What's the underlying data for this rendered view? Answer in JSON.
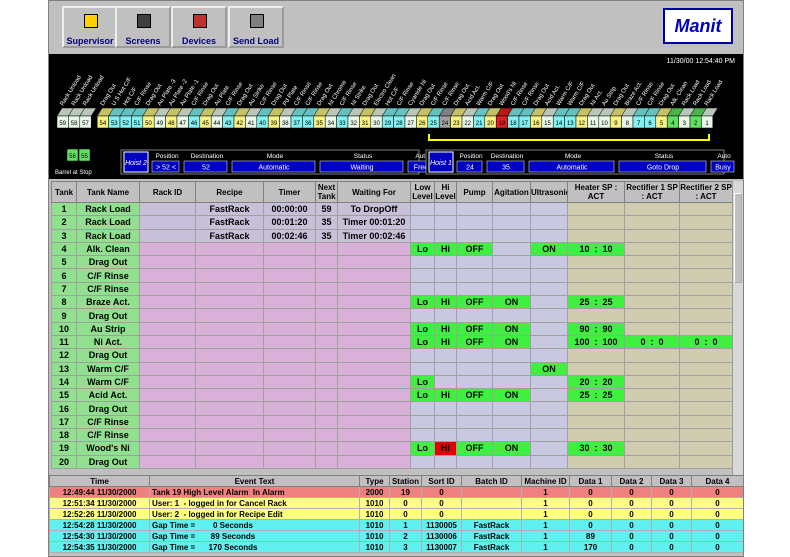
{
  "toolbar": {
    "buttons": [
      "Supervisor",
      "Screens",
      "Devices",
      "Send Load"
    ],
    "logo": "Manit"
  },
  "diagram": {
    "datetime": "11/30/00 12:54:40 PM",
    "barrel_note": "Barrel at Stop",
    "tanks": [
      {
        "no": 59,
        "label": "Rack Unload",
        "color": "#e8f8e8"
      },
      {
        "no": 58,
        "label": "Rack Unload",
        "color": "#e8f8e8"
      },
      {
        "no": 57,
        "label": "Rack Unload",
        "color": "#e8f8e8"
      },
      {
        "no": 54,
        "label": "Drag Out",
        "color": "#f8f080"
      },
      {
        "no": 53,
        "label": "U S Hot C/F",
        "color": "#80f0f0"
      },
      {
        "no": 52,
        "label": "Hot C/F",
        "color": "#80f0f0"
      },
      {
        "no": 51,
        "label": "C/F Rinse",
        "color": "#80f0f0"
      },
      {
        "no": 50,
        "label": "Drag Out",
        "color": "#f8f080"
      },
      {
        "no": 49,
        "label": "Au Plate -3",
        "color": "#e8f8e8"
      },
      {
        "no": 48,
        "label": "Au Plate -2",
        "color": "#f8f080"
      },
      {
        "no": 47,
        "label": "Au Plate -1",
        "color": "#e8f8e8"
      },
      {
        "no": 46,
        "label": "C/F Rinse",
        "color": "#80f0f0"
      },
      {
        "no": 45,
        "label": "Drag Out",
        "color": "#f8f080"
      },
      {
        "no": 44,
        "label": "Au Plate",
        "color": "#e8f8e8"
      },
      {
        "no": 43,
        "label": "C/F Rinse",
        "color": "#80f0f0"
      },
      {
        "no": 42,
        "label": "Drag Out",
        "color": "#f8f080"
      },
      {
        "no": 41,
        "label": "Au Strike",
        "color": "#e8f8e8"
      },
      {
        "no": 40,
        "label": "C/F Rinse",
        "color": "#80f0f0"
      },
      {
        "no": 39,
        "label": "Drag Out",
        "color": "#f8f080"
      },
      {
        "no": 38,
        "label": "Pd Plate",
        "color": "#e8f8e8"
      },
      {
        "no": 37,
        "label": "C/F Rinse",
        "color": "#80f0f0"
      },
      {
        "no": 36,
        "label": "C/F Rinse",
        "color": "#80f0f0"
      },
      {
        "no": 35,
        "label": "Drag Out",
        "color": "#f8f080"
      },
      {
        "no": 34,
        "label": "Ni Chrome",
        "color": "#e8f8e8"
      },
      {
        "no": 33,
        "label": "C/F Rinse",
        "color": "#80f0f0"
      },
      {
        "no": 32,
        "label": "Ni Strike",
        "color": "#e8f8e8"
      },
      {
        "no": 31,
        "label": "Drag Out",
        "color": "#f8f080"
      },
      {
        "no": 30,
        "label": "Electro Clean",
        "color": "#e8f8e8"
      },
      {
        "no": 29,
        "label": "Hot C/F",
        "color": "#80f0f0"
      },
      {
        "no": 28,
        "label": "C/F Rinse",
        "color": "#80f0f0"
      },
      {
        "no": 27,
        "label": "Cyanide Ni",
        "color": "#e8f8e8"
      },
      {
        "no": 26,
        "label": "Drag Out",
        "color": "#f8f080"
      },
      {
        "no": 25,
        "label": "C/F Rinse",
        "color": "#80f0f0"
      },
      {
        "no": 24,
        "label": "C/F Rinse",
        "color": "#a0a0a0"
      },
      {
        "no": 23,
        "label": "Drag Out",
        "color": "#f8f080"
      },
      {
        "no": 22,
        "label": "Acid Act.",
        "color": "#e8f8e8"
      },
      {
        "no": 21,
        "label": "Warm C/F",
        "color": "#80f0f0"
      },
      {
        "no": 20,
        "label": "Drag Out",
        "color": "#f8f080"
      },
      {
        "no": 19,
        "label": "Wood's Ni",
        "color": "#e02020"
      },
      {
        "no": 18,
        "label": "C/F Rinse",
        "color": "#80f0f0"
      },
      {
        "no": 17,
        "label": "C/F Rinse",
        "color": "#80f0f0"
      },
      {
        "no": 16,
        "label": "Drag Out",
        "color": "#f8f080"
      },
      {
        "no": 15,
        "label": "Acid Act.",
        "color": "#e8f8e8"
      },
      {
        "no": 14,
        "label": "Warm C/F",
        "color": "#80f0f0"
      },
      {
        "no": 13,
        "label": "Warm C/F",
        "color": "#80f0f0"
      },
      {
        "no": 12,
        "label": "Drag Out",
        "color": "#f8f080"
      },
      {
        "no": 11,
        "label": "Ni Act.",
        "color": "#e8f8e8"
      },
      {
        "no": 10,
        "label": "Au Strip",
        "color": "#e8f8e8"
      },
      {
        "no": 9,
        "label": "Drag Out",
        "color": "#f8f080"
      },
      {
        "no": 8,
        "label": "Braze Act.",
        "color": "#e8f8e8"
      },
      {
        "no": 7,
        "label": "C/F Rinse",
        "color": "#80f0f0"
      },
      {
        "no": 6,
        "label": "C/F Rinse",
        "color": "#80f0f0"
      },
      {
        "no": 5,
        "label": "Drag Out",
        "color": "#f8f080"
      },
      {
        "no": 4,
        "label": "Alk. Clean",
        "color": "#60e060"
      },
      {
        "no": 3,
        "label": "Rack Load",
        "color": "#e8f8e8"
      },
      {
        "no": 2,
        "label": "Rack Load",
        "color": "#60e060"
      },
      {
        "no": 1,
        "label": "Rack Load",
        "color": "#e8f8e8"
      }
    ],
    "lower_tanks": [
      {
        "no": 56,
        "color": "#60e060"
      },
      {
        "no": 55,
        "color": "#60e060"
      }
    ],
    "hoists": [
      {
        "name": "Hoist 2",
        "fields": [
          "Position",
          "Destination",
          "Mode",
          "Status",
          "Auto"
        ],
        "values": [
          "> 52 <",
          "52",
          "Automatic",
          "Waiting",
          "Free"
        ]
      },
      {
        "name": "Hoist 1",
        "fields": [
          "Position",
          "Destination",
          "Mode",
          "Status",
          "Auto"
        ],
        "values": [
          "24",
          "35",
          "Automatic",
          "Goto Drop",
          "Busy"
        ]
      }
    ]
  },
  "table": {
    "columns": [
      "Tank",
      "Tank Name",
      "Rack ID",
      "Recipe",
      "Timer",
      "Next Tank",
      "Waiting For",
      "Low Level",
      "Hi Level",
      "Pump",
      "Agitation",
      "Ultrasonic",
      "Heater SP : ACT",
      "Rectifier 1 SP : ACT",
      "Rectifier 2 SP : ACT"
    ],
    "alarm_cells": [
      [
        18,
        8
      ]
    ],
    "rows": [
      [
        1,
        "Rack Load",
        null,
        "FastRack",
        "00:00:00",
        "59",
        "To DropOff",
        null,
        null,
        null,
        null,
        null,
        null,
        null,
        null
      ],
      [
        2,
        "Rack Load",
        null,
        "FastRack",
        "00:01:20",
        "35",
        "Timer 00:01:20",
        null,
        null,
        null,
        null,
        null,
        null,
        null,
        null
      ],
      [
        3,
        "Rack Load",
        null,
        "FastRack",
        "00:02:46",
        "35",
        "Timer 00:02:46",
        null,
        null,
        null,
        null,
        null,
        null,
        null,
        null
      ],
      [
        4,
        "Alk. Clean",
        null,
        null,
        null,
        null,
        null,
        "Lo",
        "Hi",
        "OFF",
        null,
        "ON",
        "10  :  10",
        null,
        null
      ],
      [
        5,
        "Drag Out",
        null,
        null,
        null,
        null,
        null,
        null,
        null,
        null,
        null,
        null,
        null,
        null,
        null
      ],
      [
        6,
        "C/F Rinse",
        null,
        null,
        null,
        null,
        null,
        null,
        null,
        null,
        null,
        null,
        null,
        null,
        null
      ],
      [
        7,
        "C/F Rinse",
        null,
        null,
        null,
        null,
        null,
        null,
        null,
        null,
        null,
        null,
        null,
        null,
        null
      ],
      [
        8,
        "Braze Act.",
        null,
        null,
        null,
        null,
        null,
        "Lo",
        "Hi",
        "OFF",
        "ON",
        null,
        "25  :  25",
        null,
        null
      ],
      [
        9,
        "Drag Out",
        null,
        null,
        null,
        null,
        null,
        null,
        null,
        null,
        null,
        null,
        null,
        null,
        null
      ],
      [
        10,
        "Au Strip",
        null,
        null,
        null,
        null,
        null,
        "Lo",
        "Hi",
        "OFF",
        "ON",
        null,
        "90  :  90",
        null,
        null
      ],
      [
        11,
        "Ni Act.",
        null,
        null,
        null,
        null,
        null,
        "Lo",
        "Hi",
        "OFF",
        "ON",
        null,
        "100  :  100",
        "0  :  0",
        "0  :  0"
      ],
      [
        12,
        "Drag Out",
        null,
        null,
        null,
        null,
        null,
        null,
        null,
        null,
        null,
        null,
        null,
        null,
        null
      ],
      [
        13,
        "Warm C/F",
        null,
        null,
        null,
        null,
        null,
        null,
        null,
        null,
        null,
        "ON",
        null,
        null,
        null
      ],
      [
        14,
        "Warm C/F",
        null,
        null,
        null,
        null,
        null,
        "Lo",
        null,
        null,
        null,
        null,
        "20  :  20",
        null,
        null
      ],
      [
        15,
        "Acid Act.",
        null,
        null,
        null,
        null,
        null,
        "Lo",
        "Hi",
        "OFF",
        "ON",
        null,
        "25  :  25",
        null,
        null
      ],
      [
        16,
        "Drag Out",
        null,
        null,
        null,
        null,
        null,
        null,
        null,
        null,
        null,
        null,
        null,
        null,
        null
      ],
      [
        17,
        "C/F Rinse",
        null,
        null,
        null,
        null,
        null,
        null,
        null,
        null,
        null,
        null,
        null,
        null,
        null
      ],
      [
        18,
        "C/F Rinse",
        null,
        null,
        null,
        null,
        null,
        null,
        null,
        null,
        null,
        null,
        null,
        null,
        null
      ],
      [
        19,
        "Wood's Ni",
        null,
        null,
        null,
        null,
        null,
        "Lo",
        "Hi",
        "OFF",
        "ON",
        null,
        "30  :  30",
        null,
        null
      ],
      [
        20,
        "Drag Out",
        null,
        null,
        null,
        null,
        null,
        null,
        null,
        null,
        null,
        null,
        null,
        null,
        null
      ]
    ]
  },
  "event_log": {
    "columns": [
      "Time",
      "Event Text",
      "Type",
      "Station",
      "Sort ID",
      "Batch ID",
      "Machine ID",
      "Data 1",
      "Data 2",
      "Data 3",
      "Data 4"
    ],
    "row_colors": [
      "#f08080",
      "#ffff80",
      "#ffff80",
      "#60f0f0",
      "#60f0f0",
      "#60f0f0"
    ],
    "rows": [
      [
        "12:49:44 11/30/2000",
        "Tank 19 High Level Alarm  In Alarm",
        "2000",
        "19",
        "0",
        null,
        "1",
        "0",
        "0",
        "0",
        "0"
      ],
      [
        "12:51:34 11/30/2000",
        "User: 1  - logged in for Cancel Rack",
        "1010",
        "0",
        "0",
        null,
        "1",
        "0",
        "0",
        "0",
        "0"
      ],
      [
        "12:52:26 11/30/2000",
        "User: 2  - logged in for Recipe Edit",
        "1010",
        "0",
        "0",
        null,
        "1",
        "0",
        "0",
        "0",
        "0"
      ],
      [
        "12:54:28 11/30/2000",
        "Gap Time =        0 Seconds",
        "1010",
        "1",
        "1130005",
        "FastRack",
        "1",
        "0",
        "0",
        "0",
        "0"
      ],
      [
        "12:54:30 11/30/2000",
        "Gap Time =       89 Seconds",
        "1010",
        "2",
        "1130006",
        "FastRack",
        "1",
        "89",
        "0",
        "0",
        "0"
      ],
      [
        "12:54:35 11/30/2000",
        "Gap Time =      170 Seconds",
        "1010",
        "3",
        "1130007",
        "FastRack",
        "1",
        "170",
        "0",
        "0",
        "0"
      ]
    ]
  }
}
